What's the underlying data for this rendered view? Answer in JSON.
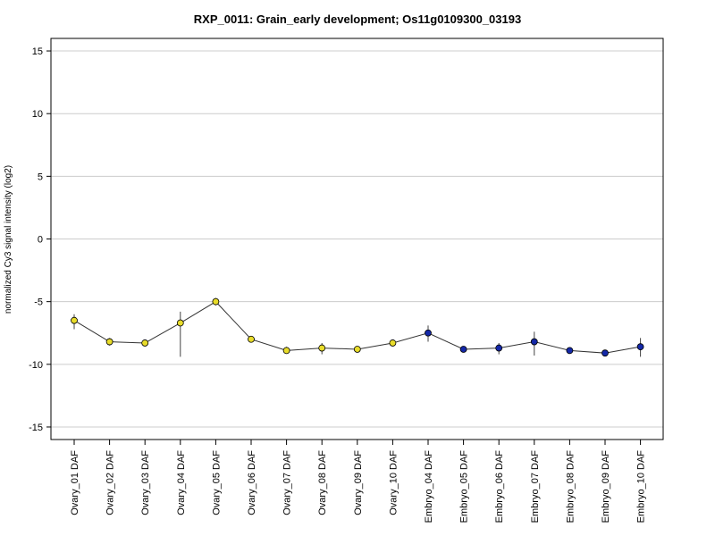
{
  "chart_data": {
    "type": "line",
    "title": "RXP_0011: Grain_early development; Os11g0109300_03193",
    "xlabel": "",
    "ylabel": "normalized Cy3 signal intensity (log2)",
    "ylim": [
      -16,
      16
    ],
    "yticks": [
      15,
      10,
      5,
      0,
      -5,
      -10,
      -15
    ],
    "grid": true,
    "categories": [
      "Ovary_01 DAF",
      "Ovary_02 DAF",
      "Ovary_03 DAF",
      "Ovary_04 DAF",
      "Ovary_05 DAF",
      "Ovary_06 DAF",
      "Ovary_07 DAF",
      "Ovary_08 DAF",
      "Ovary_09 DAF",
      "Ovary_10 DAF",
      "Embryo_04 DAF",
      "Embryo_05 DAF",
      "Embryo_06 DAF",
      "Embryo_07 DAF",
      "Embryo_08 DAF",
      "Embryo_09 DAF",
      "Embryo_10 DAF"
    ],
    "series": [
      {
        "values": [
          -6.5,
          -8.2,
          -8.3,
          -6.7,
          -5.0,
          -8.0,
          -8.9,
          -8.7,
          -8.8,
          -8.3,
          -7.5,
          -8.8,
          -8.7,
          -8.2,
          -8.9,
          -9.1,
          -8.6
        ],
        "err_low": [
          -7.2,
          -8.5,
          -8.5,
          -9.4,
          -5.3,
          -8.2,
          -9.1,
          -9.2,
          -8.9,
          -8.5,
          -8.2,
          -9.0,
          -9.2,
          -9.3,
          -9.0,
          -9.3,
          -9.4
        ],
        "err_high": [
          -6.0,
          -7.9,
          -8.1,
          -5.8,
          -4.7,
          -7.8,
          -8.6,
          -8.3,
          -8.6,
          -8.1,
          -6.9,
          -8.6,
          -8.3,
          -7.4,
          -8.7,
          -8.9,
          -7.9
        ],
        "point_colors": [
          "#e8dc2a",
          "#e8dc2a",
          "#e8dc2a",
          "#e8dc2a",
          "#e8dc2a",
          "#e8dc2a",
          "#e8dc2a",
          "#e8dc2a",
          "#e8dc2a",
          "#e8dc2a",
          "#1428a8",
          "#1428a8",
          "#1428a8",
          "#1428a8",
          "#1428a8",
          "#1428a8",
          "#1428a8"
        ]
      }
    ],
    "colors": {
      "line": "#333333",
      "grid": "#cccccc",
      "frame": "#000000",
      "errorbar": "#444444"
    }
  }
}
